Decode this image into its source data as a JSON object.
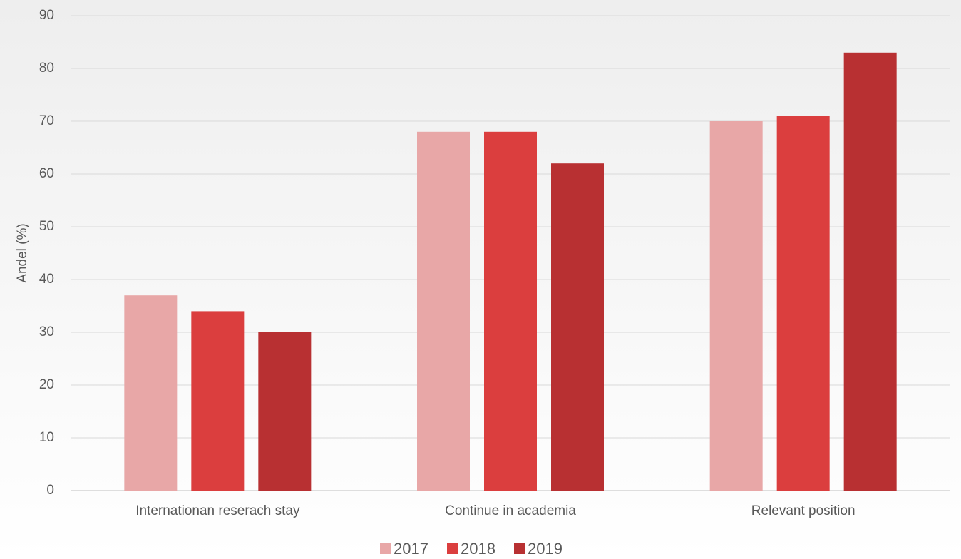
{
  "chart_data": {
    "type": "bar",
    "ylabel": "Andel (%)",
    "categories": [
      "Internationan reserach stay",
      "Continue in academia",
      "Relevant position"
    ],
    "series": [
      {
        "name": "2017",
        "color": "#e8a7a7",
        "values": [
          37,
          68,
          70
        ]
      },
      {
        "name": "2018",
        "color": "#db3e3e",
        "values": [
          34,
          68,
          71
        ]
      },
      {
        "name": "2019",
        "color": "#b83032",
        "values": [
          30,
          62,
          83
        ]
      }
    ],
    "ylim": [
      0,
      90
    ],
    "yticks": [
      0,
      10,
      20,
      30,
      40,
      50,
      60,
      70,
      80,
      90
    ],
    "grid": true,
    "legend": "bottom"
  }
}
